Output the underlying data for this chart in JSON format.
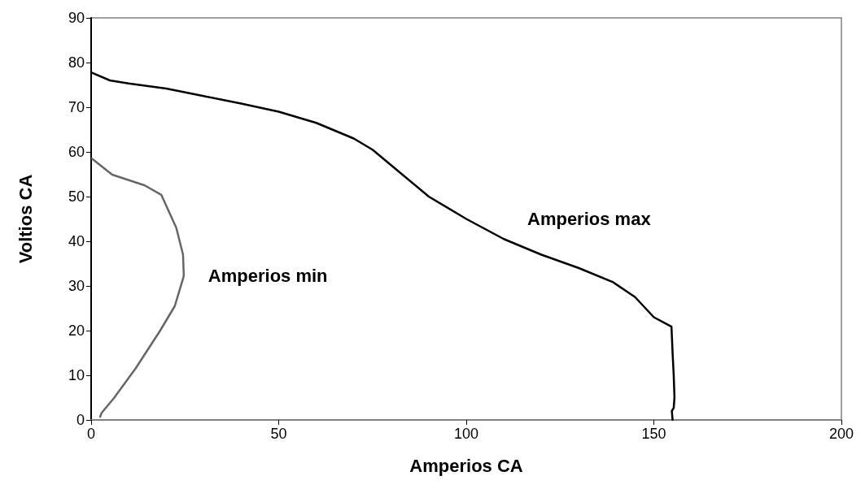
{
  "chart_data": {
    "type": "line",
    "xlabel": "Amperios CA",
    "ylabel": "Voltios CA",
    "xlim": [
      0,
      200
    ],
    "xticks": [
      0,
      50,
      100,
      150,
      200
    ],
    "ylim": [
      0,
      90
    ],
    "yticks": [
      0,
      10,
      20,
      30,
      40,
      50,
      60,
      70,
      80,
      90
    ],
    "grid": false,
    "legend": false,
    "marker": "none",
    "line_style": "solid",
    "series": [
      {
        "name": "Amperios max",
        "color": "#000000",
        "x": [
          0,
          5,
          10,
          20,
          30,
          40,
          50,
          60,
          70,
          75,
          80,
          90,
          100,
          110,
          120,
          130,
          139,
          145,
          150,
          154.7,
          155,
          155.3,
          155.5,
          155.3,
          154.8,
          155
        ],
        "values": [
          77.8,
          76,
          75.3,
          74.2,
          72.5,
          70.8,
          69,
          66.5,
          63,
          60.5,
          57,
          50,
          45,
          40.5,
          37,
          34,
          30.9,
          27.5,
          23,
          20.9,
          15,
          10,
          5,
          2.7,
          2,
          0
        ]
      },
      {
        "name": "Amperios min",
        "color": "#666666",
        "x": [
          0.2,
          5.6,
          14.3,
          18.7,
          22.7,
          24.5,
          24.7,
          22.3,
          18.4,
          11.9,
          6.1,
          2.8,
          2.4
        ],
        "values": [
          58.5,
          54.9,
          52.5,
          50.4,
          43,
          37,
          32.2,
          25.5,
          20,
          11.6,
          4.9,
          1.6,
          0.7
        ]
      }
    ]
  }
}
